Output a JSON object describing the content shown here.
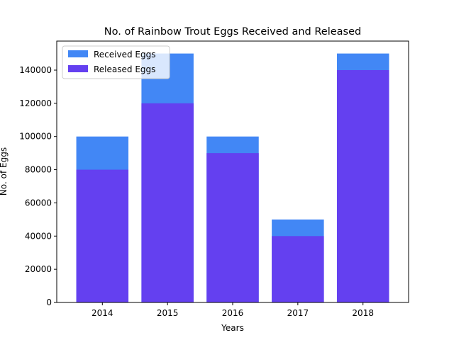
{
  "chart_data": {
    "type": "bar",
    "title": "No. of Rainbow Trout Eggs Received and Released",
    "xlabel": "Years",
    "ylabel": "No. of Eggs",
    "categories": [
      "2014",
      "2015",
      "2016",
      "2017",
      "2018"
    ],
    "series": [
      {
        "name": "Received Eggs",
        "values": [
          100000,
          150000,
          100000,
          50000,
          150000
        ],
        "color": "#4287f5"
      },
      {
        "name": "Released Eggs",
        "values": [
          80000,
          120000,
          90000,
          40000,
          140000
        ],
        "color": "#6440f0"
      }
    ],
    "ylim": [
      0,
      157500
    ],
    "yticks": [
      0,
      20000,
      40000,
      60000,
      80000,
      100000,
      120000,
      140000
    ],
    "ytick_labels": [
      "0",
      "20000",
      "40000",
      "60000",
      "80000",
      "100000",
      "120000",
      "140000"
    ],
    "legend_placement": "top-left",
    "grid": false
  }
}
